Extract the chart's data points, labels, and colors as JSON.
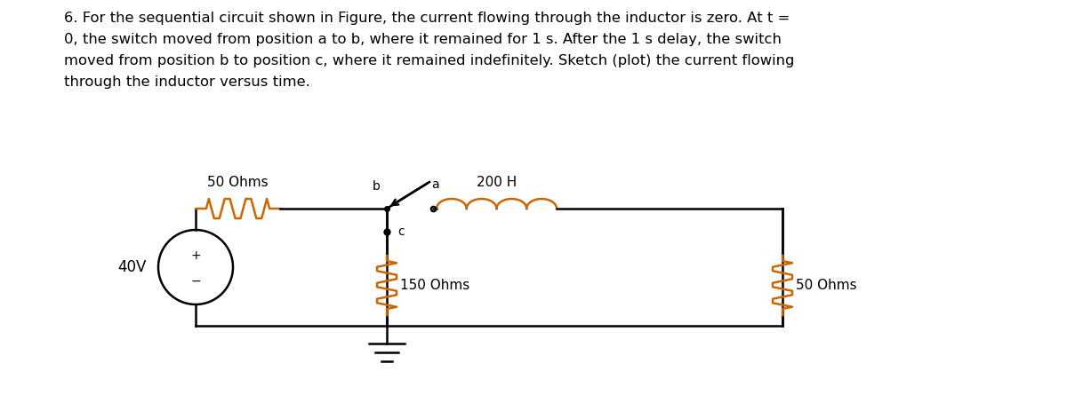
{
  "title_text": "6. For the sequential circuit shown in Figure, the current flowing through the inductor is zero. At t =\n0, the switch moved from position a to b, where it remained for 1 s. After the 1 s delay, the switch\nmoved from position b to position c, where it remained indefinitely. Sketch (plot) the current flowing\nthrough the inductor versus time.",
  "label_50ohms_top": "50 Ohms",
  "label_200H": "200 H",
  "label_40V": "40V",
  "label_150ohms": "150 Ohms",
  "label_50ohms_right": "50 Ohms",
  "label_a": "a",
  "label_b": "b",
  "label_c": "c",
  "label_plus": "+",
  "label_minus": "−",
  "bg_color": "#ffffff",
  "text_color": "#000000",
  "wire_color": "#000000",
  "resistor_color": "#cc6600",
  "inductor_color": "#cc6600"
}
